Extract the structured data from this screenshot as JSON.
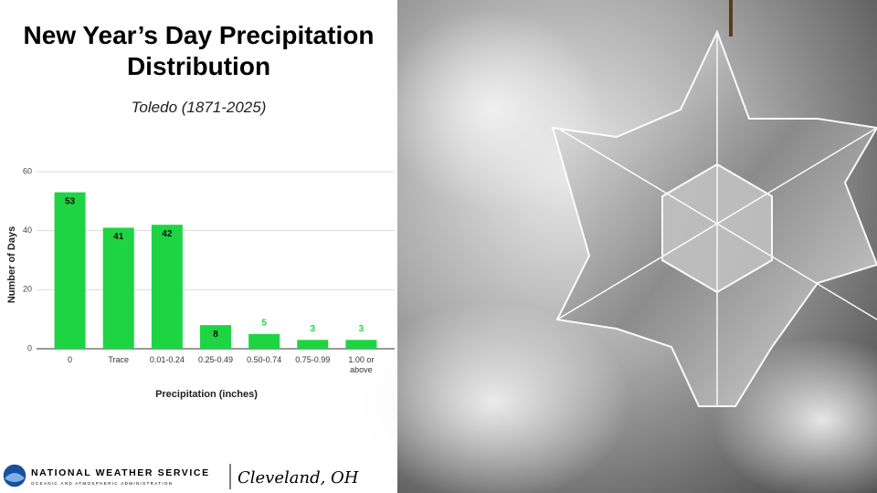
{
  "chart_data": {
    "type": "bar",
    "title": "New Year’s Day Precipitation Distribution",
    "subtitle": "Toledo (1871-2025)",
    "x_label": "Precipitation (inches)",
    "y_label": "Number of Days",
    "categories": [
      "0",
      "Trace",
      "0.01-0.24",
      "0.25-0.49",
      "0.50-0.74",
      "0.75-0.99",
      "1.00 or above"
    ],
    "values": [
      53,
      41,
      42,
      8,
      5,
      3,
      3
    ],
    "color": "#1fd443",
    "ylim": [
      0,
      60
    ],
    "yticks": [
      0,
      20,
      40,
      60
    ],
    "grid": true
  },
  "footer": {
    "agency": "NATIONAL WEATHER SERVICE",
    "agency_sub": "OCEANIC AND ATMOSPHERIC ADMINISTRATION",
    "office": "Cleveland, OH"
  }
}
